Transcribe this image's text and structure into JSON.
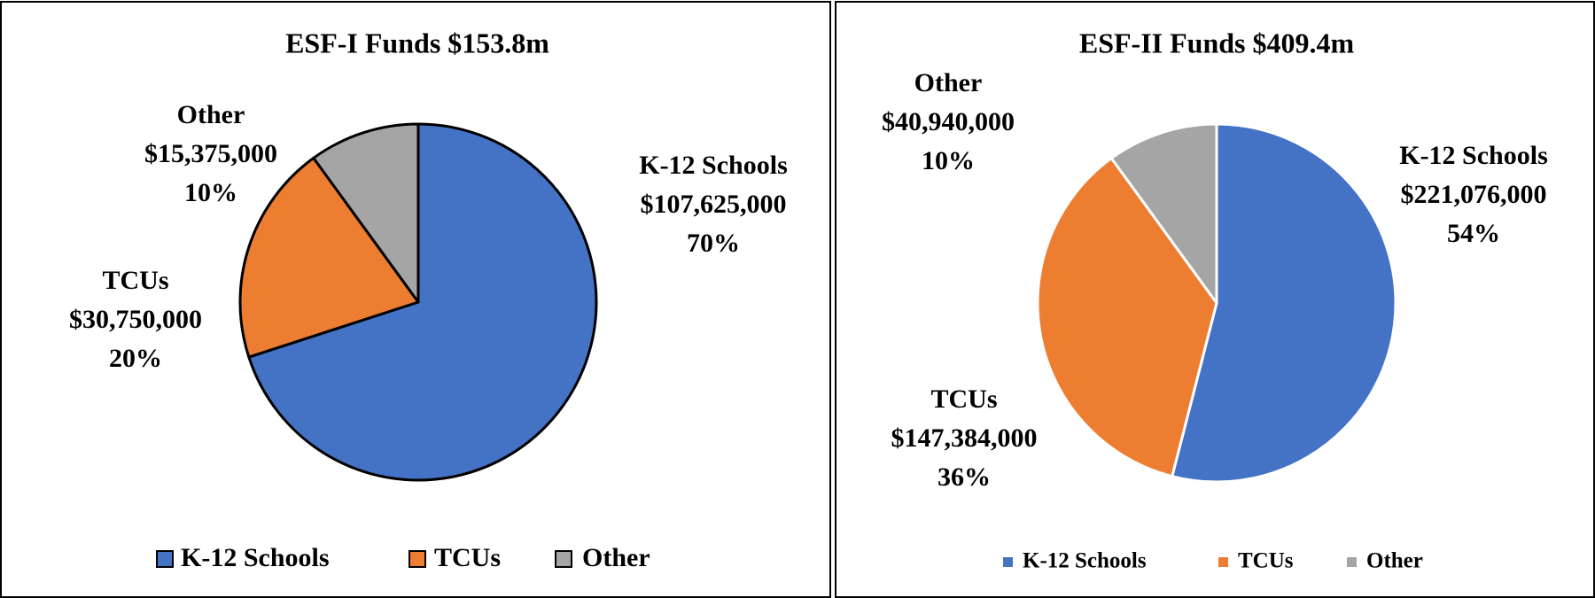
{
  "chart_data": [
    {
      "type": "pie",
      "title": "ESF-I Funds $153.8m",
      "categories": [
        "K-12 Schools",
        "TCUs",
        "Other"
      ],
      "values": [
        107625000,
        30750000,
        15375000
      ],
      "value_labels": [
        "$107,625,000",
        "$30,750,000",
        "$15,375,000"
      ],
      "percent_labels": [
        "70%",
        "20%",
        "10%"
      ],
      "colors": [
        "#4472c4",
        "#ed7d31",
        "#a5a5a5"
      ],
      "edge_color": "#000000",
      "legend": "bottom"
    },
    {
      "type": "pie",
      "title": "ESF-II Funds $409.4m",
      "categories": [
        "K-12 Schools",
        "TCUs",
        "Other"
      ],
      "values": [
        221076000,
        147384000,
        40940000
      ],
      "value_labels": [
        "$221,076,000",
        "$147,384,000",
        "$40,940,000"
      ],
      "percent_labels": [
        "54%",
        "36%",
        "10%"
      ],
      "colors": [
        "#4472c4",
        "#ed7d31",
        "#a5a5a5"
      ],
      "edge_color": "#ffffff",
      "legend": "bottom"
    }
  ]
}
